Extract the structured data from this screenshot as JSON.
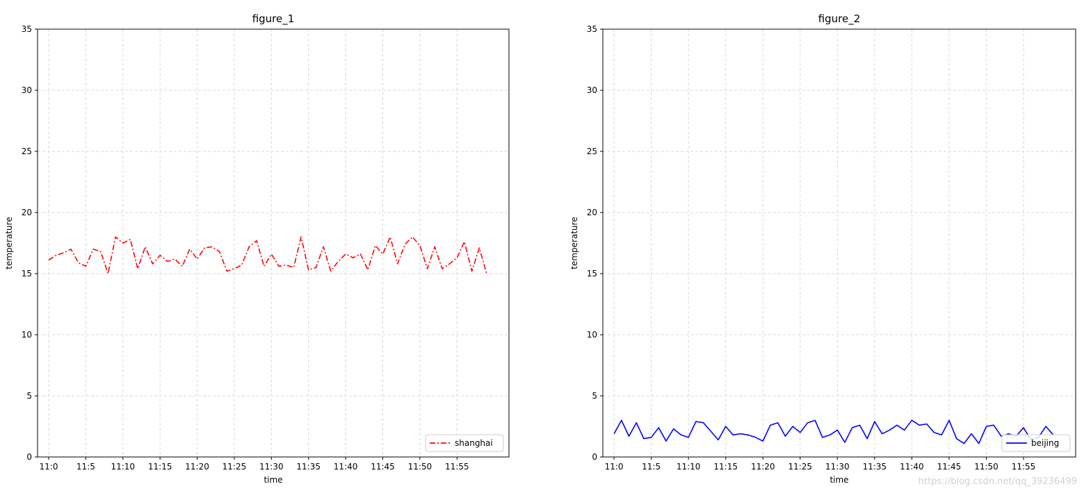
{
  "chart_data": [
    {
      "type": "line",
      "title": "figure_1",
      "xlabel": "time",
      "ylabel": "temperature",
      "ylim": [
        0,
        35
      ],
      "yticks": [
        0,
        5,
        10,
        15,
        20,
        25,
        30,
        35
      ],
      "x_tick_labels": [
        "11:0",
        "11:5",
        "11:10",
        "11:15",
        "11:20",
        "11:25",
        "11:30",
        "11:35",
        "11:40",
        "11:45",
        "11:50",
        "11:55"
      ],
      "x": [
        0,
        1,
        2,
        3,
        4,
        5,
        6,
        7,
        8,
        9,
        10,
        11,
        12,
        13,
        14,
        15,
        16,
        17,
        18,
        19,
        20,
        21,
        22,
        23,
        24,
        25,
        26,
        27,
        28,
        29,
        30,
        31,
        32,
        33,
        34,
        35,
        36,
        37,
        38,
        39,
        40,
        41,
        42,
        43,
        44,
        45,
        46,
        47,
        48,
        49,
        50,
        51,
        52,
        53,
        54,
        55,
        56,
        57,
        58,
        59
      ],
      "grid": true,
      "legend_position": "lower-right",
      "series": [
        {
          "name": "shanghai",
          "color": "#ff0000",
          "line_style": "dash-dot",
          "values": [
            16.1,
            16.5,
            16.7,
            17.0,
            15.9,
            15.6,
            17.0,
            16.8,
            15.0,
            18.0,
            17.5,
            17.8,
            15.4,
            17.2,
            15.8,
            16.5,
            16.0,
            16.2,
            15.6,
            17.0,
            16.2,
            17.1,
            17.2,
            16.8,
            15.2,
            15.4,
            15.7,
            17.2,
            17.7,
            15.6,
            16.6,
            15.6,
            15.7,
            15.5,
            18.0,
            15.3,
            15.5,
            17.2,
            15.2,
            16.0,
            16.6,
            16.3,
            16.6,
            15.3,
            17.3,
            16.6,
            18.0,
            15.8,
            17.4,
            18.0,
            17.3,
            15.4,
            17.2,
            15.4,
            15.8,
            16.3,
            17.6,
            15.2,
            17.1,
            15.0
          ]
        }
      ]
    },
    {
      "type": "line",
      "title": "figure_2",
      "xlabel": "time",
      "ylabel": "temperature",
      "ylim": [
        0,
        35
      ],
      "yticks": [
        0,
        5,
        10,
        15,
        20,
        25,
        30,
        35
      ],
      "x_tick_labels": [
        "11:0",
        "11:5",
        "11:10",
        "11:15",
        "11:20",
        "11:25",
        "11:30",
        "11:35",
        "11:40",
        "11:45",
        "11:50",
        "11:55"
      ],
      "x": [
        0,
        1,
        2,
        3,
        4,
        5,
        6,
        7,
        8,
        9,
        10,
        11,
        12,
        13,
        14,
        15,
        16,
        17,
        18,
        19,
        20,
        21,
        22,
        23,
        24,
        25,
        26,
        27,
        28,
        29,
        30,
        31,
        32,
        33,
        34,
        35,
        36,
        37,
        38,
        39,
        40,
        41,
        42,
        43,
        44,
        45,
        46,
        47,
        48,
        49,
        50,
        51,
        52,
        53,
        54,
        55,
        56,
        57,
        58,
        59
      ],
      "grid": true,
      "legend_position": "lower-right",
      "series": [
        {
          "name": "beijing",
          "color": "#0000ff",
          "line_style": "solid",
          "values": [
            1.9,
            3.0,
            1.7,
            2.8,
            1.5,
            1.6,
            2.4,
            1.3,
            2.3,
            1.8,
            1.6,
            2.9,
            2.8,
            2.1,
            1.4,
            2.5,
            1.8,
            1.9,
            1.8,
            1.6,
            1.3,
            2.6,
            2.8,
            1.7,
            2.5,
            2.0,
            2.8,
            3.0,
            1.6,
            1.8,
            2.2,
            1.2,
            2.4,
            2.6,
            1.5,
            2.9,
            1.9,
            2.2,
            2.6,
            2.2,
            3.0,
            2.6,
            2.7,
            2.0,
            1.8,
            3.0,
            1.5,
            1.1,
            1.9,
            1.1,
            2.5,
            2.6,
            1.7,
            1.9,
            1.7,
            2.4,
            1.4,
            1.6,
            2.5,
            1.8
          ]
        }
      ]
    }
  ],
  "watermark": "https://blog.csdn.net/qq_39236499"
}
